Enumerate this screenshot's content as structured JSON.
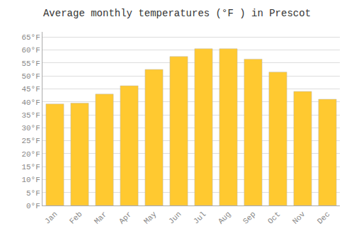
{
  "chart_data": {
    "type": "bar",
    "title": "Average monthly temperatures (°F ) in Prescot",
    "categories": [
      "Jan",
      "Feb",
      "Mar",
      "Apr",
      "May",
      "Jun",
      "Jul",
      "Aug",
      "Sep",
      "Oct",
      "Nov",
      "Dec"
    ],
    "values": [
      39.2,
      39.5,
      43.0,
      46.2,
      52.5,
      57.5,
      60.5,
      60.5,
      56.5,
      51.5,
      44.0,
      41.0
    ],
    "color": "#FFC930",
    "ylim": [
      0,
      67
    ],
    "yticks": [
      {
        "value": 0,
        "label": "0°F"
      },
      {
        "value": 5,
        "label": "5°F"
      },
      {
        "value": 10,
        "label": "10°F"
      },
      {
        "value": 15,
        "label": "15°F"
      },
      {
        "value": 20,
        "label": "20°F"
      },
      {
        "value": 25,
        "label": "25°F"
      },
      {
        "value": 30,
        "label": "30°F"
      },
      {
        "value": 35,
        "label": "35°F"
      },
      {
        "value": 40,
        "label": "40°F"
      },
      {
        "value": 45,
        "label": "45°F"
      },
      {
        "value": 50,
        "label": "50°F"
      },
      {
        "value": 55,
        "label": "55°F"
      },
      {
        "value": 60,
        "label": "60°F"
      },
      {
        "value": 65,
        "label": "65°F"
      }
    ],
    "grid": true
  }
}
